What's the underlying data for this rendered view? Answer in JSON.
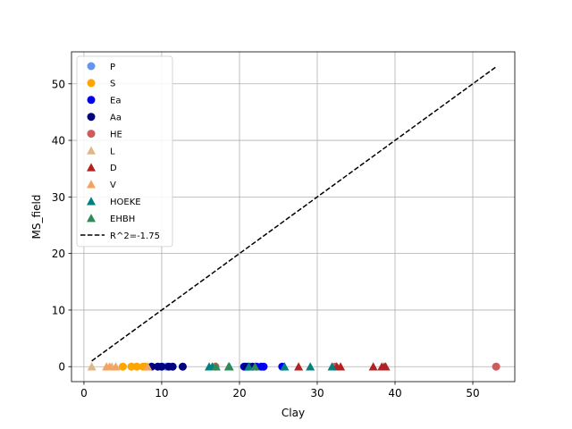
{
  "chart_data": {
    "type": "scatter",
    "xlabel": "Clay",
    "ylabel": "MS_field",
    "xlim": [
      -1.6,
      55.4
    ],
    "ylim": [
      -2.65,
      55.65
    ],
    "xticks": [
      0,
      10,
      20,
      30,
      40,
      50
    ],
    "yticks": [
      0,
      10,
      20,
      30,
      40,
      50
    ],
    "grid": true,
    "legend_position": "upper-left",
    "series": [
      {
        "name": "P",
        "marker": "circle",
        "color": "#6495ed",
        "points": [
          [
            10.6,
            0
          ],
          [
            21.4,
            0
          ]
        ]
      },
      {
        "name": "S",
        "marker": "circle",
        "color": "#ffa500",
        "points": [
          [
            5.0,
            0
          ],
          [
            6.1,
            0
          ],
          [
            6.8,
            0
          ],
          [
            7.6,
            0
          ],
          [
            7.9,
            0
          ]
        ]
      },
      {
        "name": "Ea",
        "marker": "circle",
        "color": "#0000ee",
        "points": [
          [
            20.6,
            0
          ],
          [
            21.1,
            0
          ],
          [
            22.2,
            0
          ],
          [
            22.8,
            0
          ],
          [
            23.1,
            0
          ],
          [
            25.5,
            0
          ]
        ]
      },
      {
        "name": "Aa",
        "marker": "circle",
        "color": "#000080",
        "points": [
          [
            8.7,
            0
          ],
          [
            9.5,
            0
          ],
          [
            10.0,
            0
          ],
          [
            10.9,
            0
          ],
          [
            11.4,
            0
          ],
          [
            12.7,
            0
          ],
          [
            20.8,
            0
          ],
          [
            21.7,
            0
          ]
        ]
      },
      {
        "name": "HE",
        "marker": "circle",
        "color": "#cd5c5c",
        "points": [
          [
            16.9,
            0
          ],
          [
            32.3,
            0
          ],
          [
            53.0,
            0
          ]
        ]
      },
      {
        "name": "L",
        "marker": "triangle",
        "color": "#deb887",
        "points": [
          [
            1.0,
            0
          ],
          [
            3.6,
            0
          ]
        ]
      },
      {
        "name": "D",
        "marker": "triangle",
        "color": "#b22222",
        "points": [
          [
            27.6,
            0
          ],
          [
            32.5,
            0
          ],
          [
            33.0,
            0
          ],
          [
            37.2,
            0
          ],
          [
            38.3,
            0
          ],
          [
            38.6,
            0
          ],
          [
            38.8,
            0
          ]
        ]
      },
      {
        "name": "V",
        "marker": "triangle",
        "color": "#f4a460",
        "points": [
          [
            2.9,
            0
          ],
          [
            3.3,
            0
          ],
          [
            4.1,
            0
          ],
          [
            8.2,
            0
          ]
        ]
      },
      {
        "name": "HOEKE",
        "marker": "triangle",
        "color": "#008080",
        "points": [
          [
            16.1,
            0
          ],
          [
            16.5,
            0
          ],
          [
            18.7,
            0
          ],
          [
            21.2,
            0
          ],
          [
            25.8,
            0
          ],
          [
            29.1,
            0
          ],
          [
            31.9,
            0
          ]
        ]
      },
      {
        "name": "EHBH",
        "marker": "triangle",
        "color": "#2e8b57",
        "points": [
          [
            17.0,
            0
          ],
          [
            18.6,
            0
          ],
          [
            22.0,
            0
          ]
        ]
      }
    ],
    "fit_line": {
      "name": "R^2=-1.75",
      "style": "dashed",
      "color": "#000000",
      "x": [
        1.0,
        53.0
      ],
      "y": [
        1.0,
        53.0
      ]
    }
  }
}
